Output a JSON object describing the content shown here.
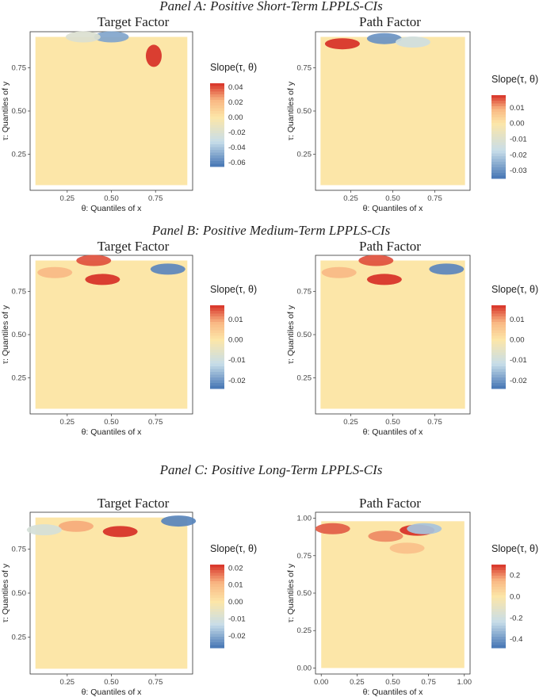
{
  "panels": [
    {
      "title": "Panel A: Positive Short-Term LPPLS-CIs"
    },
    {
      "title": "Panel B: Positive Medium-Term LPPLS-CIs"
    },
    {
      "title": "Panel C: Positive Long-Term LPPLS-CIs"
    }
  ],
  "colors": {
    "base": "#fce6a8",
    "neg_strong": "#4575b4",
    "neg_light": "#c7dde9",
    "pos_light": "#f9b783",
    "pos_strong": "#d73027",
    "border": "#333333"
  },
  "chart_data": [
    {
      "type": "heatmap",
      "panel": 0,
      "column": 0,
      "title": "Target Factor",
      "xlabel": "θ: Quantiles of x",
      "ylabel": "τ: Quantiles of y",
      "x_ticks": [
        "0.25",
        "0.50",
        "0.75"
      ],
      "y_ticks": [
        "0.25",
        "0.50",
        "0.75"
      ],
      "xlim": [
        0.04,
        0.96
      ],
      "ylim": [
        0.04,
        0.96
      ],
      "legend_title": "Slope(τ, θ)",
      "legend_ticks": [
        "0.04",
        "0.02",
        "0.00",
        "-0.02",
        "-0.04",
        "-0.06"
      ],
      "legend_range": [
        -0.065,
        0.045
      ],
      "hotspots": [
        {
          "x": 0.74,
          "y": 0.82,
          "value": 0.045
        },
        {
          "x": 0.5,
          "y": 0.93,
          "value": -0.05
        },
        {
          "x": 0.34,
          "y": 0.93,
          "value": -0.02
        }
      ]
    },
    {
      "type": "heatmap",
      "panel": 0,
      "column": 1,
      "title": "Path Factor",
      "xlabel": "θ: Quantiles of x",
      "ylabel": "τ: Quantiles of y",
      "x_ticks": [
        "0.25",
        "0.50",
        "0.75"
      ],
      "y_ticks": [
        "0.25",
        "0.50",
        "0.75"
      ],
      "xlim": [
        0.04,
        0.96
      ],
      "ylim": [
        0.04,
        0.96
      ],
      "legend_title": "Slope(τ, θ)",
      "legend_ticks": [
        "0.01",
        "0.00",
        "-0.01",
        "-0.02",
        "-0.03"
      ],
      "legend_range": [
        -0.035,
        0.018
      ],
      "hotspots": [
        {
          "x": 0.2,
          "y": 0.89,
          "value": 0.018
        },
        {
          "x": 0.45,
          "y": 0.92,
          "value": -0.03
        },
        {
          "x": 0.62,
          "y": 0.9,
          "value": -0.015
        }
      ]
    },
    {
      "type": "heatmap",
      "panel": 1,
      "column": 0,
      "title": "Target Factor",
      "xlabel": "θ: Quantiles of x",
      "ylabel": "τ: Quantiles of y",
      "x_ticks": [
        "0.25",
        "0.50",
        "0.75"
      ],
      "y_ticks": [
        "0.25",
        "0.50",
        "0.75"
      ],
      "xlim": [
        0.04,
        0.96
      ],
      "ylim": [
        0.04,
        0.96
      ],
      "legend_title": "Slope(τ, θ)",
      "legend_ticks": [
        "0.01",
        "0.00",
        "-0.01",
        "-0.02"
      ],
      "legend_range": [
        -0.024,
        0.017
      ],
      "hotspots": [
        {
          "x": 0.45,
          "y": 0.82,
          "value": 0.017
        },
        {
          "x": 0.4,
          "y": 0.93,
          "value": 0.015
        },
        {
          "x": 0.82,
          "y": 0.88,
          "value": -0.022
        },
        {
          "x": 0.18,
          "y": 0.86,
          "value": 0.008
        }
      ]
    },
    {
      "type": "heatmap",
      "panel": 1,
      "column": 1,
      "title": "Path Factor",
      "xlabel": "θ: Quantiles of x",
      "ylabel": "τ: Quantiles of y",
      "x_ticks": [
        "0.25",
        "0.50",
        "0.75"
      ],
      "y_ticks": [
        "0.25",
        "0.50",
        "0.75"
      ],
      "xlim": [
        0.04,
        0.96
      ],
      "ylim": [
        0.04,
        0.96
      ],
      "legend_title": "Slope(τ, θ)",
      "legend_ticks": [
        "0.01",
        "0.00",
        "-0.01",
        "-0.02"
      ],
      "legend_range": [
        -0.024,
        0.017
      ],
      "hotspots": [
        {
          "x": 0.45,
          "y": 0.82,
          "value": 0.017
        },
        {
          "x": 0.4,
          "y": 0.93,
          "value": 0.015
        },
        {
          "x": 0.82,
          "y": 0.88,
          "value": -0.022
        },
        {
          "x": 0.18,
          "y": 0.86,
          "value": 0.008
        }
      ]
    },
    {
      "type": "heatmap",
      "panel": 2,
      "column": 0,
      "title": "Target Factor",
      "xlabel": "θ: Quantiles of x",
      "ylabel": "τ: Quantiles of y",
      "x_ticks": [
        "0.25",
        "0.50",
        "0.75"
      ],
      "y_ticks": [
        "0.25",
        "0.50",
        "0.75"
      ],
      "xlim": [
        0.04,
        0.96
      ],
      "ylim": [
        0.04,
        0.96
      ],
      "legend_title": "Slope(τ, θ)",
      "legend_ticks": [
        "0.02",
        "0.01",
        "0.00",
        "-0.01",
        "-0.02"
      ],
      "legend_range": [
        -0.027,
        0.022
      ],
      "hotspots": [
        {
          "x": 0.55,
          "y": 0.85,
          "value": 0.022
        },
        {
          "x": 0.3,
          "y": 0.88,
          "value": 0.012
        },
        {
          "x": 0.88,
          "y": 0.91,
          "value": -0.025
        },
        {
          "x": 0.12,
          "y": 0.86,
          "value": -0.01
        }
      ]
    },
    {
      "type": "heatmap",
      "panel": 2,
      "column": 1,
      "title": "Path Factor",
      "xlabel": "θ: Quantiles of x",
      "ylabel": "τ: Quantiles of y",
      "x_ticks": [
        "0.00",
        "0.25",
        "0.50",
        "0.75",
        "1.00"
      ],
      "y_ticks": [
        "0.00",
        "0.25",
        "0.50",
        "0.75",
        "1.00"
      ],
      "xlim": [
        -0.04,
        1.04
      ],
      "ylim": [
        -0.04,
        1.04
      ],
      "legend_title": "Slope(τ, θ)",
      "legend_ticks": [
        "0.2",
        "0.0",
        "-0.2",
        "-0.4"
      ],
      "legend_range": [
        -0.48,
        0.3
      ],
      "hotspots": [
        {
          "x": 0.67,
          "y": 0.92,
          "value": 0.3
        },
        {
          "x": 0.08,
          "y": 0.93,
          "value": 0.25
        },
        {
          "x": 0.45,
          "y": 0.88,
          "value": 0.2
        },
        {
          "x": 0.6,
          "y": 0.8,
          "value": 0.12
        },
        {
          "x": 0.72,
          "y": 0.93,
          "value": -0.3
        }
      ]
    }
  ]
}
